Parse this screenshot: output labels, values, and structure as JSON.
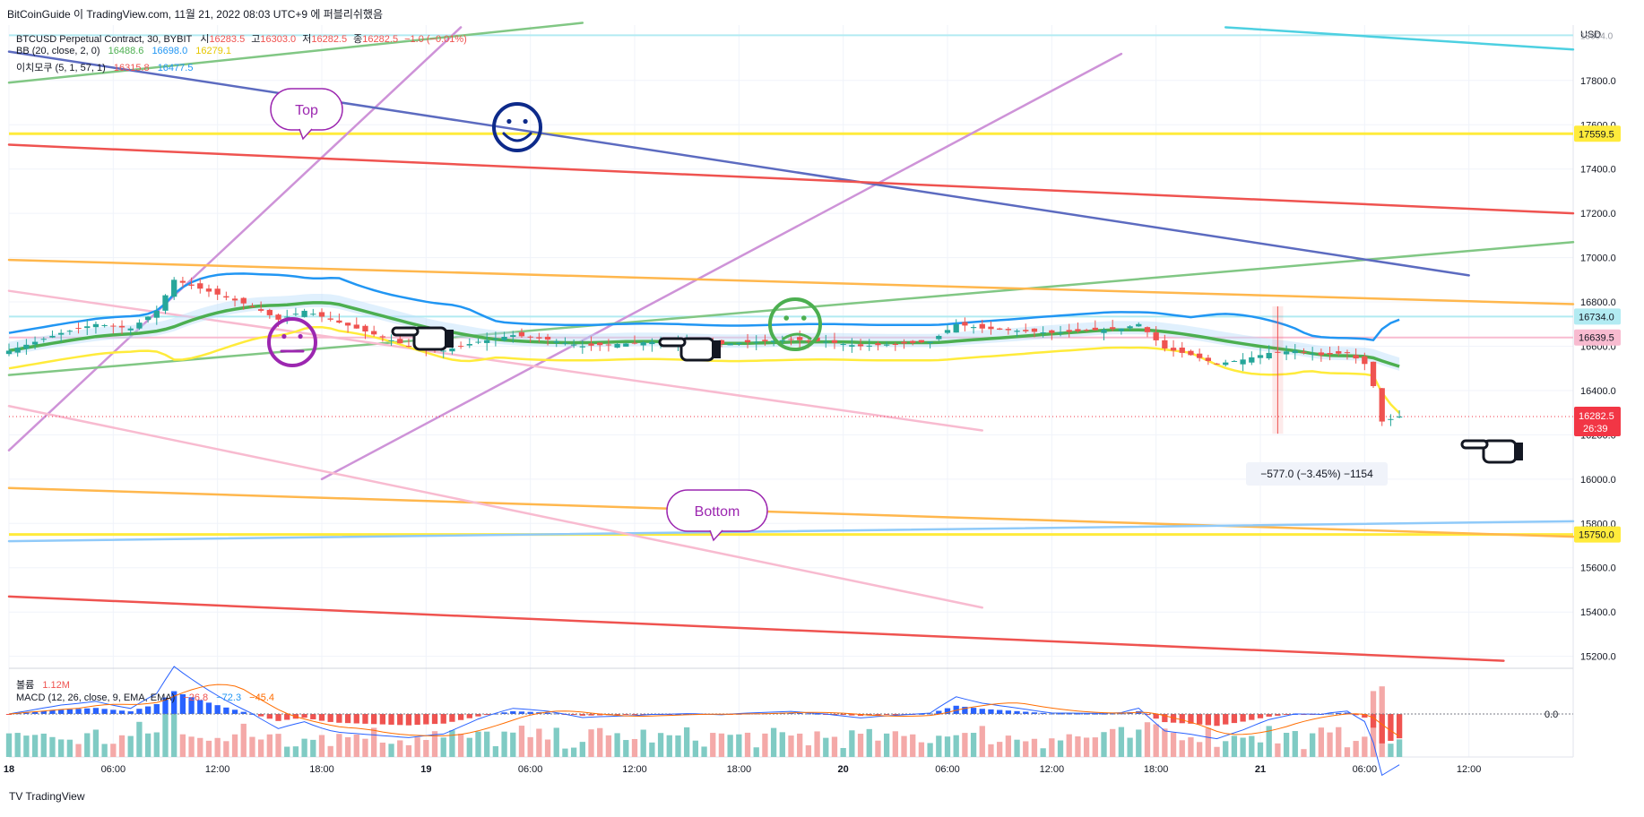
{
  "header": {
    "publish_line": "BitCoinGuide 이 TradingView.com, 11월 21, 2022 08:03 UTC+9 에 퍼블리쉬했음"
  },
  "legend": {
    "symbol": "BTCUSD Perpetual Contract, 30, BYBIT",
    "ohlc": [
      {
        "label": "시",
        "value": "16283.5"
      },
      {
        "label": "고",
        "value": "16303.0"
      },
      {
        "label": "저",
        "value": "16282.5"
      },
      {
        "label": "종",
        "value": "16282.5"
      }
    ],
    "change": "−1.0 (−0.01%)",
    "bb": {
      "label": "BB (20, close, 2, 0)",
      "values": [
        "16488.6",
        "16698.0",
        "16279.1"
      ]
    },
    "ichimoku": {
      "label": "이치모쿠 (5, 1, 57, 1)",
      "values": [
        "16315.8",
        "16477.5"
      ]
    },
    "volume": {
      "label": "볼륨",
      "value": "1.12M"
    },
    "macd": {
      "label": "MACD (12, 26, close, 9, EMA, EMA)",
      "values": [
        "−26.8",
        "−72.3",
        "−45.4"
      ]
    }
  },
  "colors": {
    "up": "#26a69a",
    "down": "#ef5350",
    "bb_basis": "#4caf50",
    "bb_upper": "#2196f3",
    "bb_lower": "#ffeb3b",
    "purple": "#9c27b0",
    "price_tag": "#f23645"
  },
  "price_axis": {
    "currency": "USD",
    "top_label": "18004.0",
    "current_price": "16282.5",
    "countdown": "26:39",
    "tags": [
      {
        "value": "17559.5",
        "color": "#ffeb3b",
        "text_color": "#131722"
      },
      {
        "value": "16734.0",
        "color": "#b2ebf2",
        "text_color": "#131722"
      },
      {
        "value": "16639.5",
        "color": "#f8bbd0",
        "text_color": "#131722"
      },
      {
        "value": "15750.0",
        "color": "#ffeb3b",
        "text_color": "#131722"
      }
    ]
  },
  "annotations": {
    "top_bubble": "Top",
    "bottom_bubble": "Bottom",
    "measure": "−577.0 (−3.45%) −1154"
  },
  "chart_data": {
    "type": "candlestick",
    "symbol": "BTCUSD Perpetual Contract",
    "interval": "30",
    "exchange": "BYBIT",
    "y_ticks": [
      17800,
      17600,
      17400,
      17200,
      17000,
      16800,
      16600,
      16400,
      16200,
      16000,
      15800,
      15600,
      15400,
      15200
    ],
    "x_ticks": [
      "18",
      "06:00",
      "12:00",
      "18:00",
      "19",
      "06:00",
      "12:00",
      "18:00",
      "20",
      "06:00",
      "12:00",
      "18:00",
      "21",
      "06:00",
      "12:00"
    ],
    "ylim": [
      15150,
      18050
    ],
    "x_range_hours": [
      0,
      90
    ],
    "hlines": [
      17559.5,
      16734.0,
      16639.5,
      15750.0
    ],
    "price_anchors": [
      [
        0.0,
        16580
      ],
      [
        3.0,
        16660
      ],
      [
        5.0,
        16700
      ],
      [
        7.0,
        16680
      ],
      [
        8.5,
        16760
      ],
      [
        9.5,
        16900
      ],
      [
        11.0,
        16860
      ],
      [
        12.5,
        16820
      ],
      [
        14.0,
        16780
      ],
      [
        15.5,
        16720
      ],
      [
        17.0,
        16760
      ],
      [
        18.5,
        16720
      ],
      [
        20.0,
        16680
      ],
      [
        21.5,
        16640
      ],
      [
        23.0,
        16600
      ],
      [
        25.0,
        16580
      ],
      [
        27.0,
        16620
      ],
      [
        29.0,
        16650
      ],
      [
        31.0,
        16630
      ],
      [
        33.0,
        16600
      ],
      [
        35.0,
        16610
      ],
      [
        37.0,
        16620
      ],
      [
        39.0,
        16620
      ],
      [
        41.0,
        16610
      ],
      [
        43.0,
        16620
      ],
      [
        45.0,
        16630
      ],
      [
        47.0,
        16620
      ],
      [
        49.0,
        16600
      ],
      [
        51.0,
        16610
      ],
      [
        53.0,
        16620
      ],
      [
        54.5,
        16700
      ],
      [
        56.0,
        16680
      ],
      [
        58.0,
        16670
      ],
      [
        60.0,
        16660
      ],
      [
        62.0,
        16670
      ],
      [
        64.0,
        16680
      ],
      [
        65.0,
        16700
      ],
      [
        66.5,
        16590
      ],
      [
        68.0,
        16560
      ],
      [
        69.5,
        16520
      ],
      [
        71.0,
        16540
      ],
      [
        72.5,
        16570
      ],
      [
        74.0,
        16580
      ],
      [
        75.5,
        16560
      ],
      [
        77.0,
        16570
      ],
      [
        78.0,
        16520
      ],
      [
        78.5,
        16420
      ],
      [
        79.0,
        16260
      ],
      [
        80.0,
        16282.5
      ]
    ],
    "macd_zero": "0.0"
  }
}
